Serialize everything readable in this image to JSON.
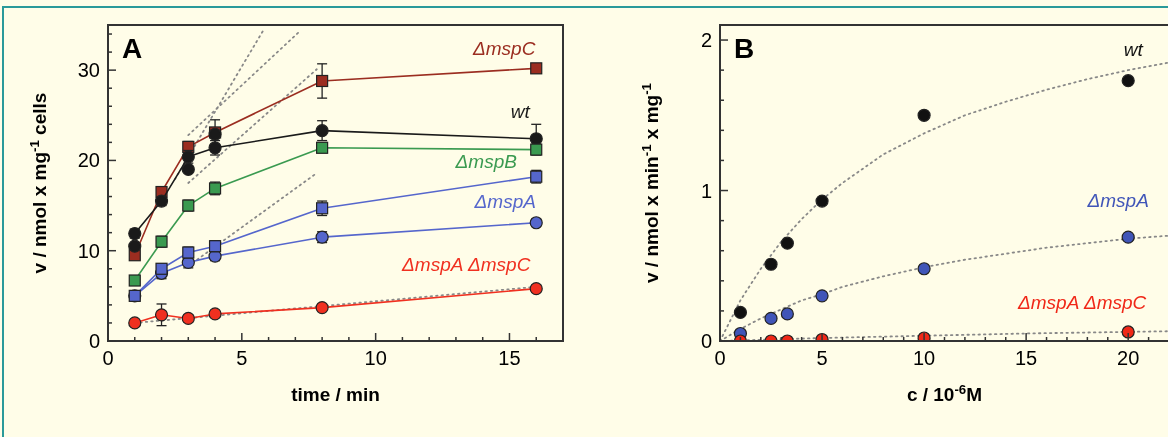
{
  "chart_data": [
    {
      "type": "line",
      "title": "A",
      "xlabel": "time / min",
      "ylabel": "v / nmol x mg$^{-1}$ cells",
      "xlim": [
        0,
        17
      ],
      "ylim": [
        0,
        35
      ],
      "xticks": [
        0,
        {
          "value": 1,
          "label": null
        },
        {
          "value": 2,
          "label": null
        },
        {
          "value": 3,
          "label": null
        },
        {
          "value": 4,
          "label": null
        },
        5,
        {
          "value": 6,
          "label": null
        },
        {
          "value": 7,
          "label": null
        },
        {
          "value": 8,
          "label": null
        },
        {
          "value": 9,
          "label": null
        },
        10,
        {
          "value": 11,
          "label": null
        },
        {
          "value": 12,
          "label": null
        },
        {
          "value": 13,
          "label": null
        },
        {
          "value": 14,
          "label": null
        },
        15,
        {
          "value": 16,
          "label": null
        }
      ],
      "yticks": [
        0,
        {
          "value": 2,
          "label": null
        },
        {
          "value": 4,
          "label": null
        },
        {
          "value": 6,
          "label": null
        },
        {
          "value": 8,
          "label": null
        },
        10,
        {
          "value": 12,
          "label": null
        },
        {
          "value": 14,
          "label": null
        },
        {
          "value": 16,
          "label": null
        },
        {
          "value": 18,
          "label": null
        },
        20,
        {
          "value": 22,
          "label": null
        },
        {
          "value": 24,
          "label": null
        },
        {
          "value": 26,
          "label": null
        },
        {
          "value": 28,
          "label": null
        },
        30,
        {
          "value": 32,
          "label": null
        },
        {
          "value": 34,
          "label": null
        }
      ],
      "grid": false,
      "legend": false,
      "series": [
        {
          "color": "#888888",
          "marker": "none",
          "line_style": "dotted",
          "x": [
            2.5,
            5.8
          ],
          "values": [
            17.9,
            34.4
          ]
        },
        {
          "color": "#888888",
          "marker": "none",
          "line_style": "dotted",
          "x": [
            3,
            7.2
          ],
          "values": [
            22.8,
            34.4
          ]
        },
        {
          "color": "#888888",
          "marker": "none",
          "line_style": "dotted",
          "x": [
            3,
            7.8
          ],
          "values": [
            17.5,
            30.1
          ]
        },
        {
          "color": "#888888",
          "marker": "none",
          "line_style": "dotted",
          "x": [
            3,
            7.8
          ],
          "values": [
            8.3,
            18.6
          ]
        },
        {
          "color": "#888888",
          "marker": "none",
          "line_style": "dotted",
          "x": [
            1,
            16
          ],
          "values": [
            2.0,
            6.0
          ]
        },
        {
          "name": "ΔmspC",
          "color": "#9b2d20",
          "marker": "square",
          "line_style": "solid",
          "x": [
            1,
            2,
            3,
            4,
            8,
            16
          ],
          "values": [
            9.5,
            16.5,
            21.5,
            23.1,
            28.8,
            30.2
          ],
          "errors": [
            0.4,
            0.5,
            0.6,
            1.4,
            1.9,
            0.5
          ]
        },
        {
          "name": "wt",
          "color": "#1a1a1a",
          "marker": "circle",
          "line_style": "solid",
          "x": [
            1,
            2,
            3,
            4,
            8,
            16
          ],
          "values": [
            11.9,
            15.5,
            20.4,
            21.4,
            23.3,
            22.4
          ],
          "errors": [
            0.5,
            0.5,
            0.7,
            0.8,
            1.1,
            1.6
          ]
        },
        {
          "type": "scatter",
          "color": "#1a1a1a",
          "marker": "circle",
          "x": [
            1,
            3,
            4
          ],
          "values": [
            10.5,
            19.0,
            22.9
          ]
        },
        {
          "name": "ΔmspB",
          "color": "#3a9a50",
          "marker": "square",
          "line_style": "solid",
          "x": [
            1,
            2,
            3,
            4,
            8,
            16
          ],
          "values": [
            6.7,
            11.0,
            15.0,
            16.9,
            21.4,
            21.2
          ],
          "errors": [
            0.5,
            0.6,
            0.6,
            0.7,
            0.5,
            0.6
          ]
        },
        {
          "color": "#5566cc",
          "marker": "circle",
          "line_style": "solid",
          "x": [
            1,
            2,
            3,
            4,
            8,
            16
          ],
          "values": [
            5.0,
            7.5,
            8.7,
            9.4,
            11.5,
            13.1
          ],
          "errors": [
            0.4,
            0.6,
            0.6,
            0.5,
            0.6,
            0.4
          ]
        },
        {
          "name": "ΔmspA",
          "color": "#5566cc",
          "marker": "square",
          "line_style": "solid",
          "x": [
            1,
            2,
            3,
            4,
            8,
            16
          ],
          "values": [
            5.0,
            8.0,
            9.8,
            10.5,
            14.7,
            18.2
          ],
          "errors": [
            0.4,
            0.5,
            0.6,
            0.6,
            0.8,
            0.7
          ]
        },
        {
          "name": "ΔmspA ΔmspC",
          "color": "#f03020",
          "marker": "circle",
          "line_style": "solid",
          "x": [
            1,
            2,
            3,
            4,
            8,
            16
          ],
          "values": [
            2.0,
            2.9,
            2.5,
            3.0,
            3.7,
            5.8
          ],
          "errors": [
            null,
            1.2,
            0.4,
            null,
            0.3,
            0.4
          ]
        }
      ]
    },
    {
      "type": "scatter",
      "title": "B",
      "xlabel": "c / 10$^{-6}$M",
      "ylabel": "v / nmol x min$^{-1}$ x mg$^{-1}$",
      "xlim": [
        0,
        22
      ],
      "ylim": [
        0,
        2.1
      ],
      "xticks": [
        0,
        {
          "value": 1,
          "label": null
        },
        {
          "value": 2,
          "label": null
        },
        {
          "value": 3,
          "label": null
        },
        {
          "value": 4,
          "label": null
        },
        5,
        {
          "value": 6,
          "label": null
        },
        {
          "value": 7,
          "label": null
        },
        {
          "value": 8,
          "label": null
        },
        {
          "value": 9,
          "label": null
        },
        10,
        {
          "value": 11,
          "label": null
        },
        {
          "value": 12,
          "label": null
        },
        {
          "value": 13,
          "label": null
        },
        {
          "value": 14,
          "label": null
        },
        15,
        {
          "value": 16,
          "label": null
        },
        {
          "value": 17,
          "label": null
        },
        {
          "value": 18,
          "label": null
        },
        {
          "value": 19,
          "label": null
        },
        20,
        {
          "value": 21,
          "label": null
        }
      ],
      "yticks": [
        0,
        {
          "value": 0.2,
          "label": null
        },
        {
          "value": 0.4,
          "label": null
        },
        {
          "value": 0.6,
          "label": null
        },
        {
          "value": 0.8,
          "label": null
        },
        1,
        {
          "value": 1.2,
          "label": null
        },
        {
          "value": 1.4,
          "label": null
        },
        {
          "value": 1.6,
          "label": null
        },
        {
          "value": 1.8,
          "label": null
        },
        2
      ],
      "grid": false,
      "legend": false,
      "series": [
        {
          "type": "line",
          "color": "#888888",
          "marker": "none",
          "line_style": "dotted",
          "x": [
            0,
            1,
            2,
            3,
            4,
            5,
            6,
            8,
            10,
            12,
            14,
            16,
            18,
            20,
            22
          ],
          "values": [
            0,
            0.27,
            0.48,
            0.66,
            0.81,
            0.94,
            1.05,
            1.24,
            1.38,
            1.5,
            1.59,
            1.67,
            1.74,
            1.8,
            1.85
          ]
        },
        {
          "type": "line",
          "color": "#888888",
          "marker": "none",
          "line_style": "dotted",
          "x": [
            0,
            1,
            2,
            3,
            4,
            5,
            6,
            8,
            10,
            12,
            14,
            16,
            18,
            20,
            22
          ],
          "values": [
            0,
            0.08,
            0.15,
            0.21,
            0.27,
            0.31,
            0.36,
            0.43,
            0.49,
            0.54,
            0.58,
            0.62,
            0.65,
            0.68,
            0.7
          ]
        },
        {
          "type": "line",
          "color": "#888888",
          "marker": "none",
          "line_style": "dotted",
          "x": [
            0,
            5,
            10,
            15,
            22
          ],
          "values": [
            0,
            0.02,
            0.035,
            0.05,
            0.065
          ]
        },
        {
          "name": "wt",
          "color": "#111111",
          "marker": "circle",
          "x": [
            1,
            2.5,
            3.3,
            5,
            10,
            20
          ],
          "values": [
            0.19,
            0.51,
            0.65,
            0.93,
            1.5,
            1.73
          ]
        },
        {
          "name": "ΔmspA",
          "color": "#4055b8",
          "marker": "circle",
          "x": [
            1,
            2.5,
            3.3,
            5,
            10,
            20
          ],
          "values": [
            0.05,
            0.15,
            0.18,
            0.3,
            0.48,
            0.69
          ]
        },
        {
          "name": "ΔmspA ΔmspC",
          "color": "#f02818",
          "marker": "circle",
          "x": [
            1,
            2.5,
            3.3,
            5,
            10,
            20
          ],
          "values": [
            0,
            0,
            0,
            0.01,
            0.02,
            0.06
          ]
        }
      ]
    }
  ]
}
